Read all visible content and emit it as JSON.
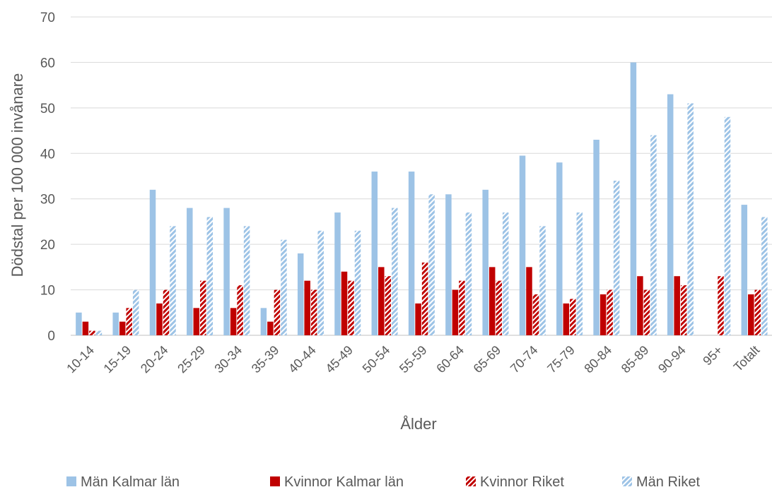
{
  "chart_data": {
    "type": "bar",
    "xlabel": "Ålder",
    "ylabel": "Dödstal per 100 000 invånare",
    "ylim": [
      0,
      70
    ],
    "yticks": [
      0,
      10,
      20,
      30,
      40,
      50,
      60,
      70
    ],
    "grid": true,
    "legend_position": "bottom",
    "categories": [
      "10-14",
      "15-19",
      "20-24",
      "25-29",
      "30-34",
      "35-39",
      "40-44",
      "45-49",
      "50-54",
      "55-59",
      "60-64",
      "65-69",
      "70-74",
      "75-79",
      "80-84",
      "85-89",
      "90-94",
      "95+",
      "Totalt"
    ],
    "series": [
      {
        "name": "Män Kalmar län",
        "color": "#9DC3E6",
        "pattern": "solid",
        "values": [
          5,
          5,
          32,
          28,
          28,
          6,
          18,
          27,
          36,
          36,
          31,
          32,
          39.5,
          38,
          43,
          60,
          53,
          null,
          28.7
        ]
      },
      {
        "name": "Kvinnor Kalmar län",
        "color": "#C00000",
        "pattern": "solid",
        "values": [
          3,
          3,
          7,
          6,
          6,
          3,
          12,
          14,
          15,
          7,
          10,
          15,
          15,
          7,
          9,
          13,
          13,
          null,
          9
        ]
      },
      {
        "name": "Kvinnor Riket",
        "color": "#C00000",
        "pattern": "hatched",
        "values": [
          1,
          6,
          10,
          12,
          11,
          10,
          10,
          12,
          13,
          16,
          12,
          12,
          9,
          8,
          10,
          10,
          11,
          13,
          10
        ]
      },
      {
        "name": "Män Riket",
        "color": "#9DC3E6",
        "pattern": "hatched",
        "values": [
          1,
          10,
          24,
          26,
          24,
          21,
          23,
          23,
          28,
          31,
          27,
          27,
          24,
          27,
          34,
          44,
          51,
          48,
          26
        ]
      }
    ]
  }
}
